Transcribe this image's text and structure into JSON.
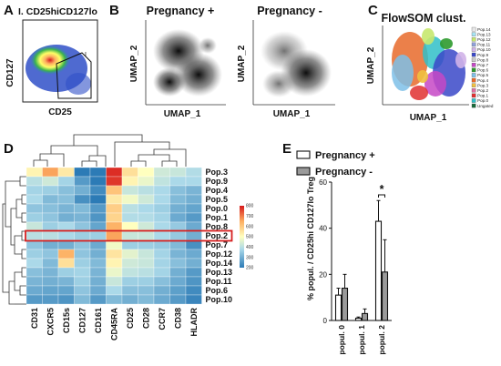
{
  "panels": {
    "A": {
      "letter": "A",
      "title": "I. CD25hiCD127lo",
      "ylabel": "CD127",
      "xlabel": "CD25",
      "gate_label": "I"
    },
    "B": {
      "letter": "B",
      "left_title": "Pregnancy +",
      "right_title": "Pregnancy -",
      "ylabel": "UMAP_2",
      "xlabel": "UMAP_1"
    },
    "C": {
      "letter": "C",
      "title": "FlowSOM clust.",
      "ylabel": "UMAP_2",
      "xlabel": "UMAP_1",
      "legend": [
        {
          "label": "Pop.14",
          "color": "#e6e6e6"
        },
        {
          "label": "Pop.13",
          "color": "#a6e3f2"
        },
        {
          "label": "Pop.12",
          "color": "#c6e86e"
        },
        {
          "label": "Pop.11",
          "color": "#90a0d8"
        },
        {
          "label": "Pop.10",
          "color": "#d0b2e8"
        },
        {
          "label": "Pop.9",
          "color": "#3a48c8"
        },
        {
          "label": "Pop.8",
          "color": "#c8c8c8"
        },
        {
          "label": "Pop.7",
          "color": "#c648c6"
        },
        {
          "label": "Pop.6",
          "color": "#2e9a2e"
        },
        {
          "label": "Pop.5",
          "color": "#7ec0e8"
        },
        {
          "label": "Pop.4",
          "color": "#e86a2a"
        },
        {
          "label": "Pop.3",
          "color": "#f0c040"
        },
        {
          "label": "Pop.2",
          "color": "#e070a0"
        },
        {
          "label": "Pop.1",
          "color": "#e03030"
        },
        {
          "label": "Pop.0",
          "color": "#30c0c8"
        },
        {
          "label": "Ungated",
          "color": "#1a6a3a"
        }
      ]
    },
    "D": {
      "letter": "D",
      "rows": [
        "Pop.3",
        "Pop.9",
        "Pop.4",
        "Pop.5",
        "Pop.0",
        "Pop.1",
        "Pop.8",
        "Pop.2",
        "Pop.7",
        "Pop.12",
        "Pop.14",
        "Pop.13",
        "Pop.11",
        "Pop.6",
        "Pop.10"
      ],
      "cols": [
        "CD31",
        "CXCR5",
        "CD15s",
        "CD127",
        "CD161",
        "CD45RA",
        "CD25",
        "CD28",
        "CCR7",
        "CD38",
        "HLADR"
      ],
      "values": [
        [
          520,
          660,
          540,
          160,
          180,
          780,
          560,
          500,
          430,
          420,
          390
        ],
        [
          400,
          430,
          370,
          260,
          190,
          770,
          520,
          470,
          410,
          380,
          380
        ],
        [
          370,
          360,
          330,
          300,
          230,
          610,
          420,
          400,
          380,
          330,
          310
        ],
        [
          380,
          320,
          330,
          240,
          200,
          540,
          480,
          430,
          380,
          320,
          300
        ],
        [
          340,
          330,
          310,
          320,
          260,
          590,
          400,
          380,
          360,
          300,
          280
        ],
        [
          360,
          340,
          300,
          310,
          250,
          580,
          390,
          390,
          370,
          290,
          260
        ],
        [
          420,
          360,
          380,
          340,
          280,
          640,
          500,
          430,
          380,
          350,
          290
        ],
        [
          400,
          400,
          380,
          360,
          360,
          660,
          420,
          420,
          380,
          350,
          300
        ],
        [
          340,
          300,
          300,
          340,
          290,
          480,
          360,
          360,
          350,
          320,
          240
        ],
        [
          360,
          340,
          640,
          340,
          300,
          550,
          460,
          420,
          370,
          310,
          290
        ],
        [
          380,
          320,
          560,
          360,
          320,
          520,
          430,
          420,
          370,
          330,
          300
        ],
        [
          330,
          310,
          360,
          370,
          310,
          470,
          410,
          400,
          370,
          300,
          260
        ],
        [
          310,
          300,
          310,
          360,
          300,
          420,
          360,
          360,
          330,
          290,
          250
        ],
        [
          290,
          280,
          280,
          340,
          290,
          380,
          330,
          330,
          300,
          270,
          230
        ],
        [
          260,
          260,
          250,
          320,
          260,
          320,
          300,
          320,
          290,
          260,
          220
        ]
      ],
      "colorbar_ticks": [
        "800",
        "700",
        "600",
        "500",
        "400",
        "300",
        "200"
      ],
      "colorbar_range": [
        200,
        800
      ],
      "highlight_row": "Pop.2"
    },
    "E": {
      "letter": "E",
      "ylabel": "% popul. / CD25hi CD127lo Treg",
      "significance": "*"
    }
  },
  "chart_data": {
    "type": "bar",
    "categories": [
      "popul. 0",
      "popul. 1",
      "popul. 2"
    ],
    "series": [
      {
        "name": "Pregnancy +",
        "values": [
          11,
          1,
          43
        ],
        "errors": [
          3,
          0.5,
          9
        ],
        "fill": "#ffffff"
      },
      {
        "name": "Pregnancy -",
        "values": [
          14,
          3,
          21
        ],
        "errors": [
          6,
          2,
          14
        ],
        "fill": "#9a9a9a"
      }
    ],
    "ylim": [
      0,
      60
    ],
    "yticks": [
      0,
      20,
      40,
      60
    ],
    "legend_placement": "top-right"
  }
}
